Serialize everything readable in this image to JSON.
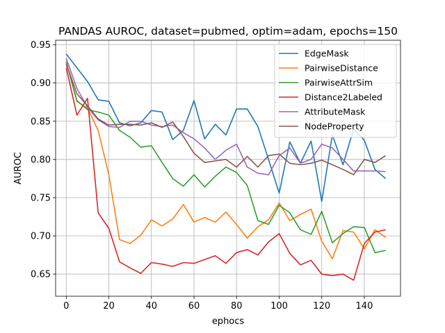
{
  "chart_data": {
    "type": "line",
    "title": "PANDAS AUROC, dataset=pubmed, optim=adam, epochs=150",
    "xlabel": "ephocs",
    "ylabel": "AUROC",
    "xlim": [
      -5,
      157
    ],
    "ylim": [
      0.621,
      0.956
    ],
    "xticks": [
      0,
      20,
      40,
      60,
      80,
      100,
      120,
      140
    ],
    "yticks": [
      0.65,
      0.7,
      0.75,
      0.8,
      0.85,
      0.9,
      0.95
    ],
    "ytick_labels": [
      "0.65",
      "0.70",
      "0.75",
      "0.80",
      "0.85",
      "0.90",
      "0.95"
    ],
    "grid": true,
    "legend_position": "top-right",
    "x": [
      0,
      5,
      10,
      15,
      20,
      25,
      30,
      35,
      40,
      45,
      50,
      55,
      60,
      65,
      70,
      75,
      80,
      85,
      90,
      95,
      100,
      105,
      110,
      115,
      120,
      125,
      130,
      135,
      140,
      145,
      150
    ],
    "series": [
      {
        "name": "EdgeMask",
        "color": "#1f77b4",
        "values": [
          0.938,
          0.92,
          0.902,
          0.878,
          0.876,
          0.848,
          0.844,
          0.848,
          0.864,
          0.862,
          0.826,
          0.838,
          0.877,
          0.827,
          0.846,
          0.832,
          0.866,
          0.866,
          0.843,
          0.8,
          0.756,
          0.823,
          0.795,
          0.824,
          0.745,
          0.832,
          0.793,
          0.84,
          0.825,
          0.787,
          0.775
        ]
      },
      {
        "name": "PairwiseDistance",
        "color": "#ff7f0e",
        "values": [
          0.928,
          0.876,
          0.867,
          0.838,
          0.78,
          0.695,
          0.69,
          0.701,
          0.721,
          0.713,
          0.722,
          0.741,
          0.718,
          0.724,
          0.718,
          0.731,
          0.715,
          0.697,
          0.712,
          0.721,
          0.743,
          0.72,
          0.728,
          0.735,
          0.693,
          0.67,
          0.707,
          0.705,
          0.683,
          0.708,
          0.698
        ]
      },
      {
        "name": "PairwiseAttrSim",
        "color": "#2ca02c",
        "values": [
          0.927,
          0.877,
          0.865,
          0.862,
          0.858,
          0.838,
          0.829,
          0.816,
          0.818,
          0.796,
          0.775,
          0.765,
          0.78,
          0.764,
          0.778,
          0.79,
          0.783,
          0.766,
          0.72,
          0.715,
          0.74,
          0.73,
          0.708,
          0.702,
          0.732,
          0.691,
          0.703,
          0.712,
          0.711,
          0.678,
          0.681
        ]
      },
      {
        "name": "Distance2Labeled",
        "color": "#d62728",
        "values": [
          0.92,
          0.858,
          0.88,
          0.73,
          0.71,
          0.666,
          0.658,
          0.651,
          0.665,
          0.663,
          0.66,
          0.665,
          0.664,
          0.669,
          0.674,
          0.664,
          0.678,
          0.682,
          0.675,
          0.692,
          0.703,
          0.677,
          0.662,
          0.668,
          0.65,
          0.648,
          0.65,
          0.642,
          0.69,
          0.705,
          0.708
        ]
      },
      {
        "name": "AttributeMask",
        "color": "#9467bd",
        "values": [
          0.932,
          0.893,
          0.868,
          0.852,
          0.843,
          0.842,
          0.85,
          0.85,
          0.845,
          0.843,
          0.845,
          0.835,
          0.827,
          0.815,
          0.8,
          0.812,
          0.82,
          0.79,
          0.782,
          0.78,
          0.805,
          0.815,
          0.795,
          0.8,
          0.82,
          0.815,
          0.8,
          0.785,
          0.785,
          0.785,
          0.784
        ]
      },
      {
        "name": "NodeProperty",
        "color": "#8c564b",
        "values": [
          0.925,
          0.886,
          0.87,
          0.853,
          0.845,
          0.846,
          0.846,
          0.845,
          0.848,
          0.842,
          0.849,
          0.83,
          0.808,
          0.796,
          0.798,
          0.8,
          0.79,
          0.804,
          0.79,
          0.805,
          0.807,
          0.795,
          0.793,
          0.795,
          0.799,
          0.793,
          0.787,
          0.78,
          0.8,
          0.796,
          0.805
        ]
      }
    ]
  }
}
